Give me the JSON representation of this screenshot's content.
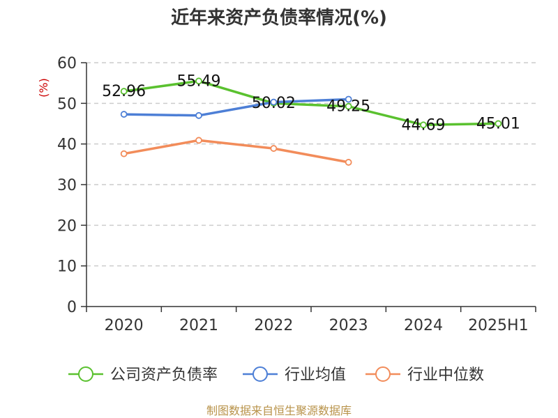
{
  "chart_data": {
    "type": "line",
    "title": "近年来资产负债率情况(%)",
    "ylabel": "(%)",
    "ylim": [
      0,
      60
    ],
    "yticks": [
      0,
      10,
      20,
      30,
      40,
      50,
      60
    ],
    "categories": [
      "2020",
      "2021",
      "2022",
      "2023",
      "2024",
      "2025H1"
    ],
    "grid": true,
    "legend_position": "bottom",
    "series": [
      {
        "name": "公司资产负债率",
        "color": "#5ac12f",
        "values": [
          52.96,
          55.49,
          50.02,
          49.25,
          44.69,
          45.01
        ],
        "labels": [
          "52.96",
          "55.49",
          "50.02",
          "49.25",
          "44.69",
          "45.01"
        ]
      },
      {
        "name": "行业均值",
        "color": "#4d7fd6",
        "values": [
          47.3,
          47.0,
          50.3,
          51.0,
          null,
          null
        ]
      },
      {
        "name": "行业中位数",
        "color": "#f28c5a",
        "values": [
          37.6,
          40.9,
          38.9,
          35.5,
          null,
          null
        ]
      }
    ],
    "source": "制图数据来自恒生聚源数据库"
  }
}
